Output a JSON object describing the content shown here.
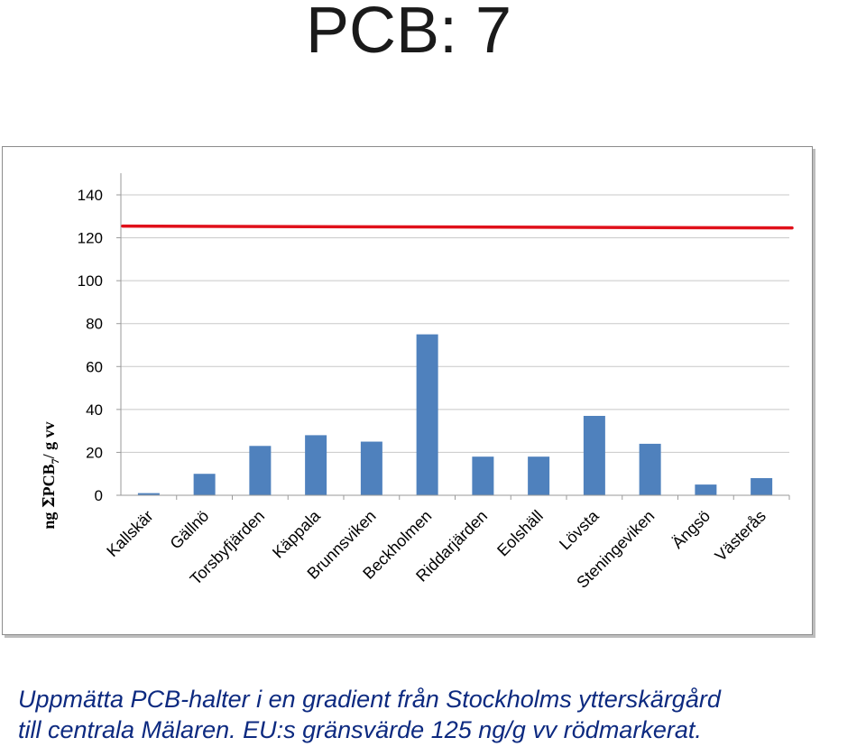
{
  "page": {
    "title": "PCB: 7",
    "caption_lines": [
      "Uppmätta PCB-halter i en gradient från Stockholms ytterskärgård",
      "till centrala Mälaren. EU:s gränsvärde 125 ng/g vv rödmarkerat."
    ]
  },
  "colors": {
    "bar": "#4f81bd",
    "limit_line": "#e0101a",
    "grid": "#c8c8c8",
    "axis": "#9a9a9a",
    "text": "#000000",
    "caption": "#0d2a80"
  },
  "chart_data": {
    "type": "bar",
    "categories": [
      "Kallskär",
      "Gällnö",
      "Torsbyfjärden",
      "Käppala",
      "Brunnsviken",
      "Beckholmen",
      "Riddarjärden",
      "Eolshäll",
      "Lövsta",
      "Steningeviken",
      "Ängsö",
      "Västerås"
    ],
    "values": [
      1,
      10,
      23,
      28,
      25,
      75,
      18,
      18,
      37,
      24,
      5,
      8
    ],
    "ylabel_parts": [
      "ng ",
      "Σ",
      "PCB",
      "7",
      "/ g vv"
    ],
    "ylim": [
      0,
      140
    ],
    "yticks": [
      "0",
      "20",
      "40",
      "60",
      "80",
      "100",
      "120",
      "140"
    ],
    "grid": true,
    "reference_line": {
      "value": 125
    }
  }
}
